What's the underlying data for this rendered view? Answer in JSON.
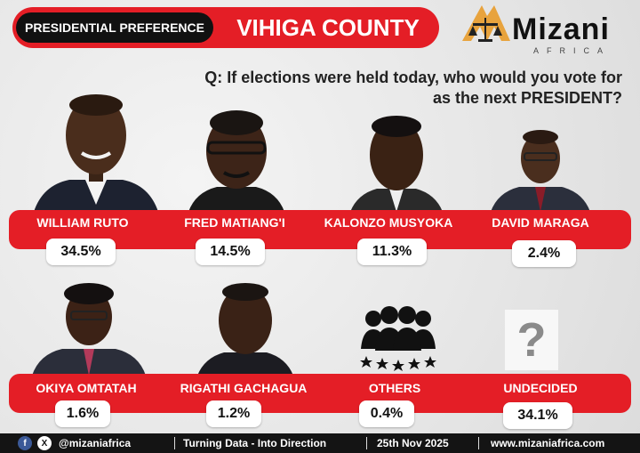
{
  "header": {
    "badge_label": "PRESIDENTIAL PREFERENCE",
    "county": "VIHIGA COUNTY"
  },
  "brand": {
    "name": "Mizani",
    "sub": "AFRICA",
    "accent": "#e41e26",
    "logo_color": "#e8a33d"
  },
  "question": {
    "line1": "Q: If elections were held today, who would you vote for",
    "line2": "as the next  PRESIDENT?"
  },
  "chart_data": {
    "type": "table",
    "title": "VIHIGA COUNTY",
    "categories": [
      "WILLIAM RUTO",
      "FRED MATIANG'I",
      "KALONZO MUSYOKA",
      "DAVID MARAGA",
      "OKIYA OMTATAH",
      "RIGATHI GACHAGUA",
      "OTHERS",
      "UNDECIDED"
    ],
    "values": [
      34.5,
      14.5,
      11.3,
      2.4,
      1.6,
      1.2,
      0.4,
      34.1
    ],
    "labels": [
      "34.5%",
      "14.5%",
      "11.3%",
      "2.4%",
      "1.6%",
      "1.2%",
      "0.4%",
      "34.1%"
    ]
  },
  "footer": {
    "facebook_icon": "facebook-icon",
    "x_icon": "x-icon",
    "handle": "@mizaniafrica",
    "tagline": "Turning Data - Into Direction",
    "date": "25th Nov 2025",
    "website": "www.mizaniafrica.com"
  }
}
